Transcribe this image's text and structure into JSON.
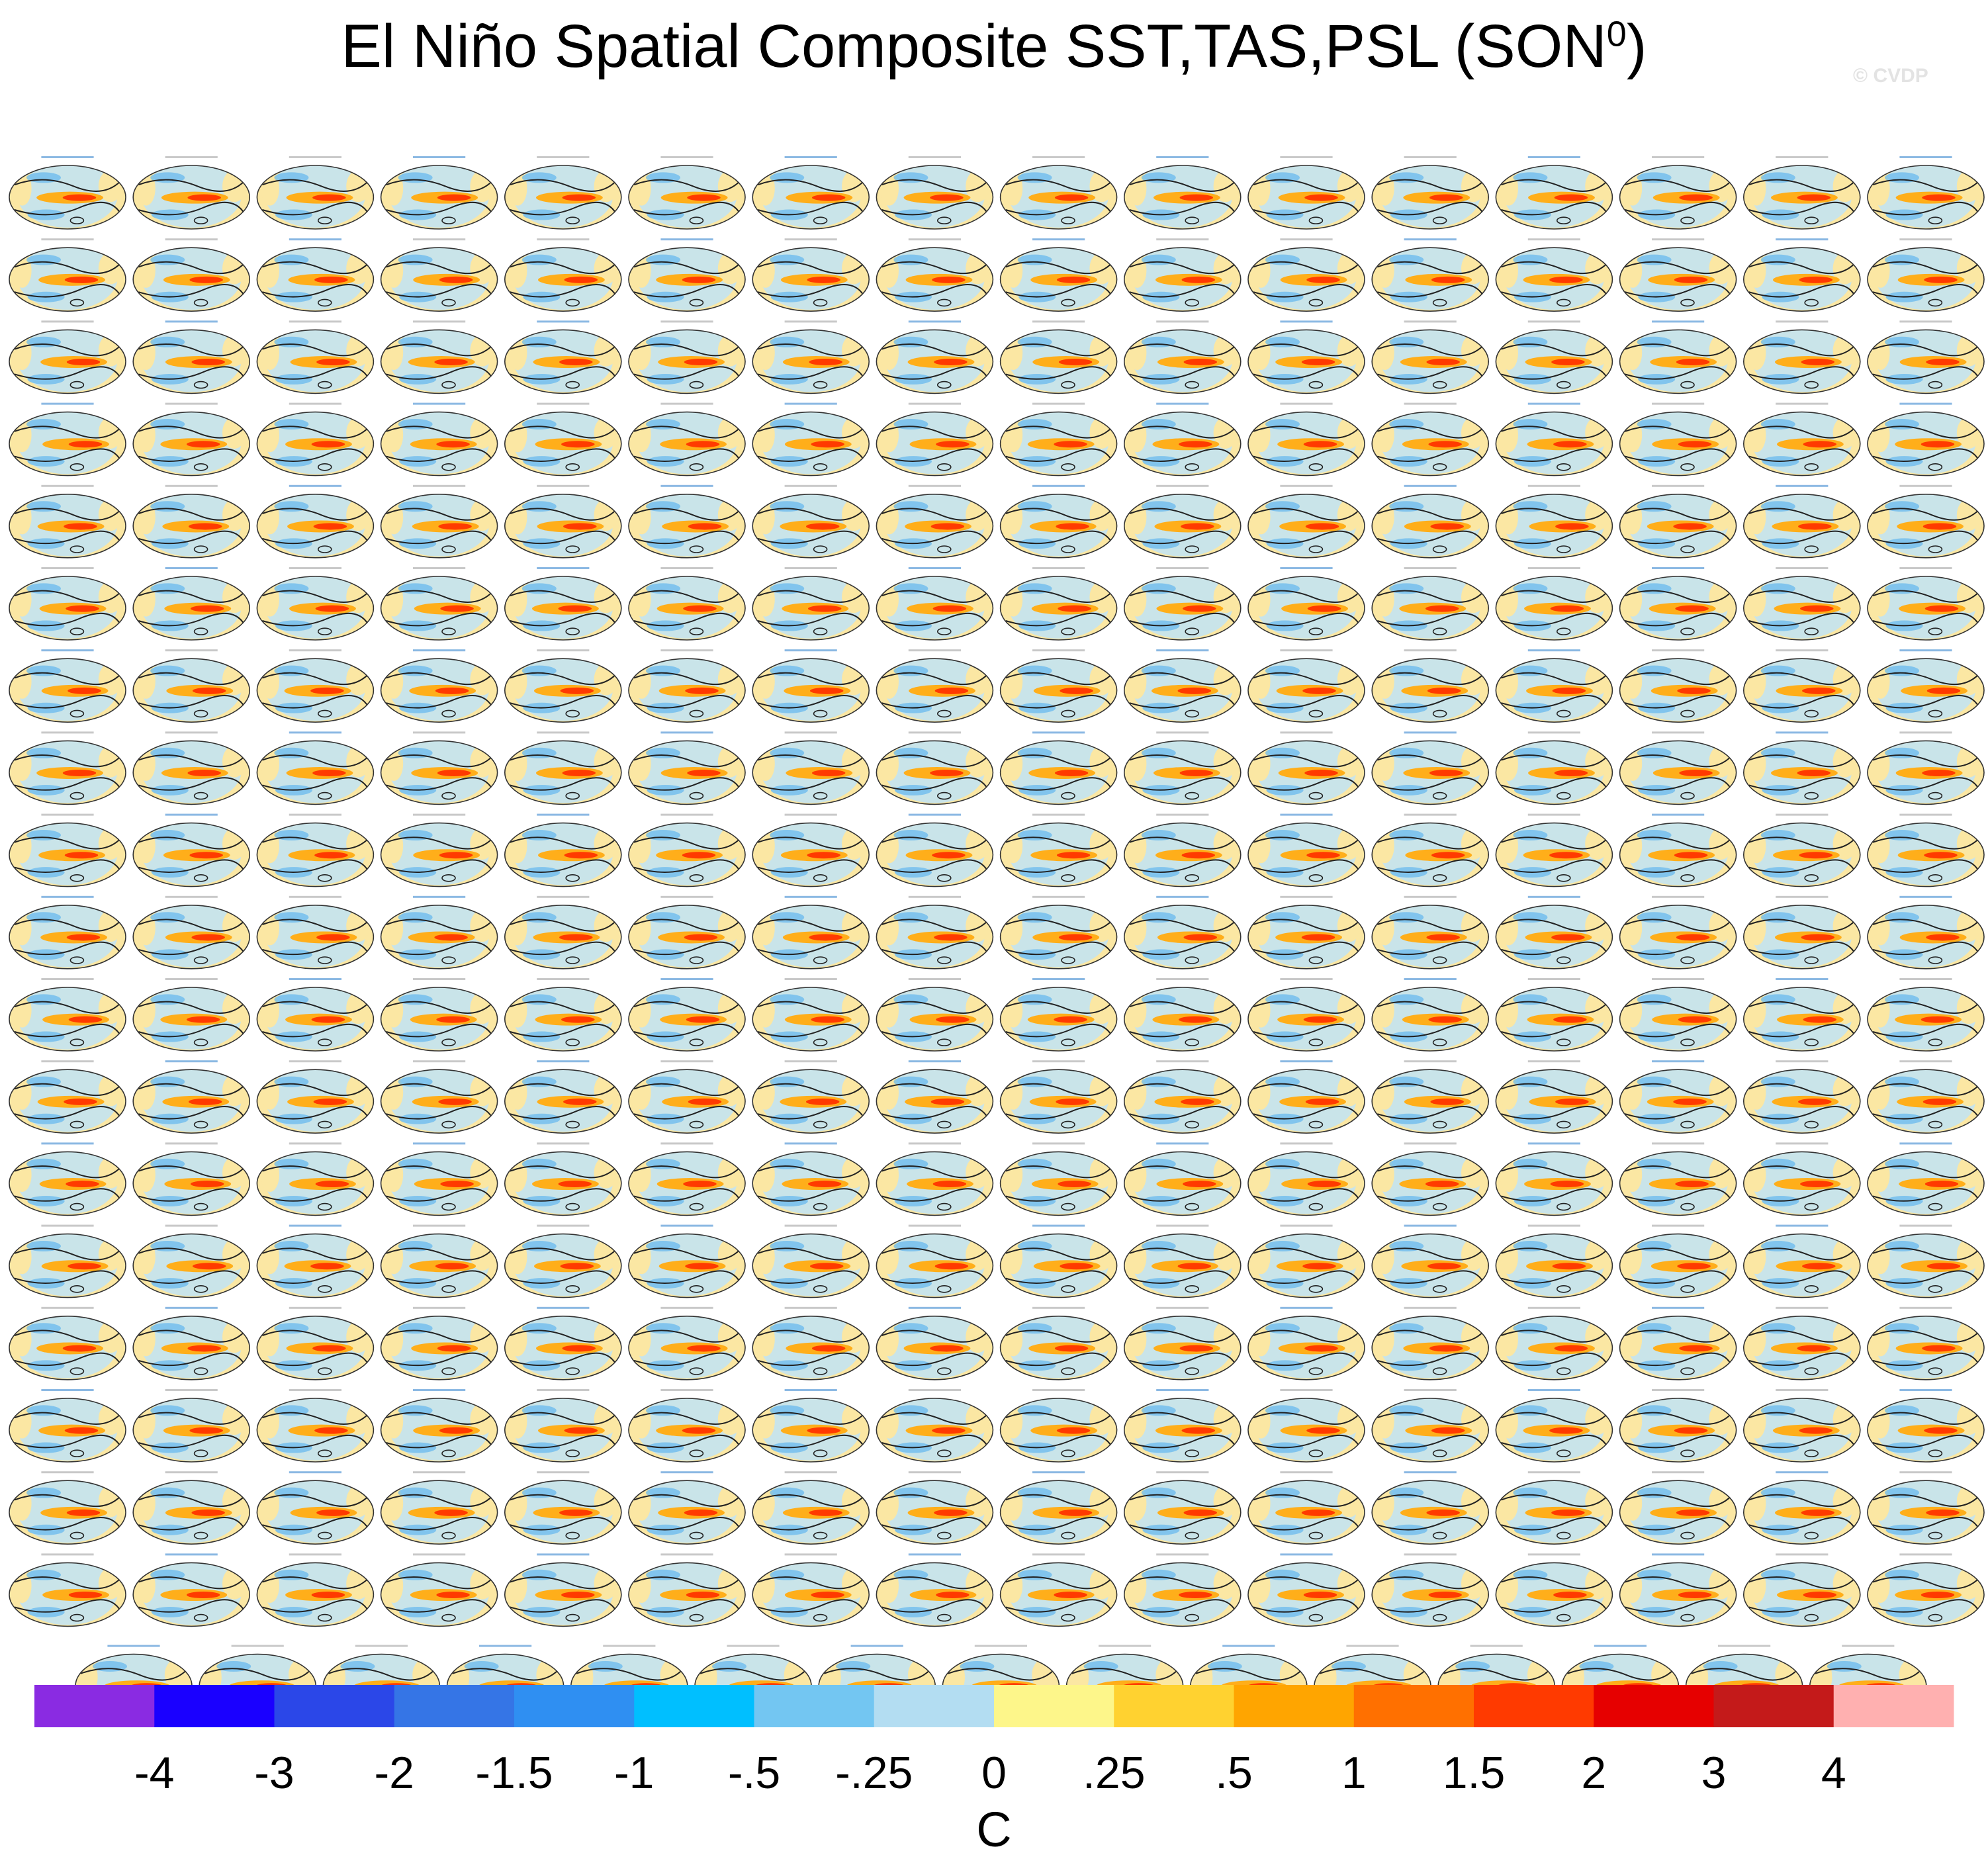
{
  "title": {
    "text": "El Niño Spatial Composite SST,TAS,PSL (SON",
    "sup": "0",
    "close": ")"
  },
  "watermark": "© CVDP",
  "panel_grid": {
    "full_rows": 18,
    "columns": 16,
    "last_row_count": 15
  },
  "chart_data": {
    "type": "heatmap",
    "title": "El Niño Spatial Composite SST,TAS,PSL (SON0)",
    "colorbar": {
      "unit": "C",
      "tick_labels": [
        "-4",
        "-3",
        "-2",
        "-1.5",
        "-1",
        "-.5",
        "-.25",
        "0",
        ".25",
        ".5",
        "1",
        "1.5",
        "2",
        "3",
        "4"
      ],
      "levels": [
        -4,
        -3,
        -2,
        -1.5,
        -1,
        -0.5,
        -0.25,
        0,
        0.25,
        0.5,
        1,
        1.5,
        2,
        3,
        4
      ],
      "colors": [
        "#8a2be2",
        "#1a00ff",
        "#2b47e8",
        "#3575e6",
        "#2f8ff2",
        "#00bfff",
        "#73c6f2",
        "#b3ddf2",
        "#fdf68a",
        "#ffd230",
        "#ffa500",
        "#ff7000",
        "#ff3a00",
        "#e60000",
        "#c41a1a",
        "#ffb0b0"
      ]
    },
    "palette": {
      "land": "#fbe7a3",
      "ocean": "#bfe3f6",
      "warm": "#ffae1a",
      "hot": "#ff3a00",
      "cool": "#62b6ee",
      "contour": "#222222"
    }
  }
}
